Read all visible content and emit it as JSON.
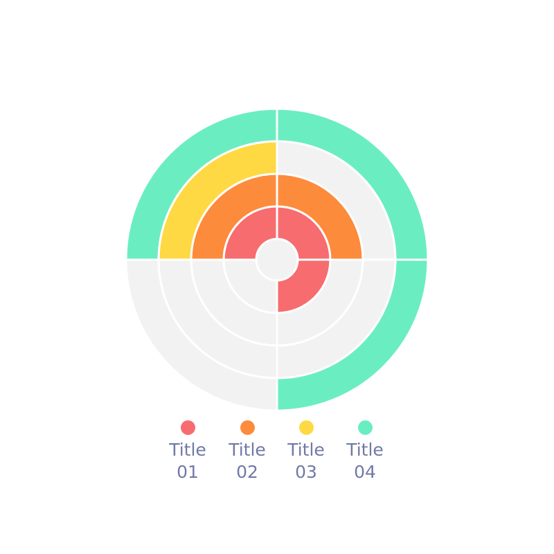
{
  "chart_data": {
    "type": "radial-bar",
    "start": "9 o'clock, clockwise",
    "max": 100,
    "track_color": "#f2f2f2",
    "series": [
      {
        "name": "Title 01",
        "title": "Title",
        "number": "01",
        "value": 75,
        "color": "#f76c6f"
      },
      {
        "name": "Title 02",
        "title": "Title",
        "number": "02",
        "value": 50,
        "color": "#fd8b3c"
      },
      {
        "name": "Title 03",
        "title": "Title",
        "number": "03",
        "value": 25,
        "color": "#ffd944"
      },
      {
        "name": "Title 04",
        "title": "Title",
        "number": "04",
        "value": 75,
        "color": "#6bedc2"
      }
    ],
    "segments": 4,
    "legend_position": "bottom"
  }
}
